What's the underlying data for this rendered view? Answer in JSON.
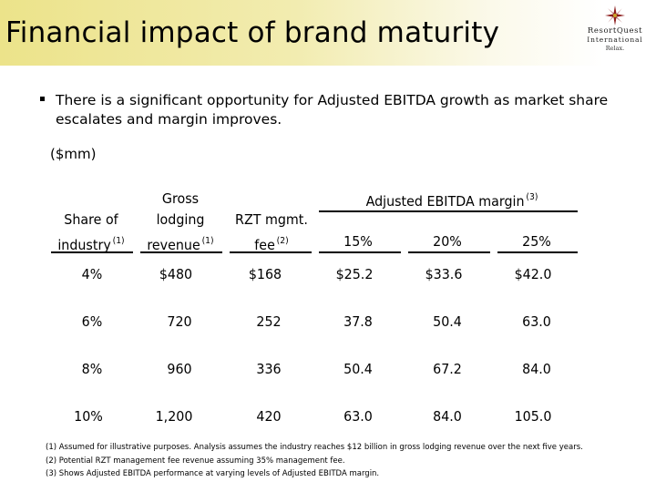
{
  "header": {
    "title": "Financial impact of brand maturity",
    "logo": {
      "icon": "compass-star-icon",
      "line1": "ResortQuest",
      "line2": "International",
      "line3": "Relax."
    }
  },
  "bullet": {
    "text": "There is a significant opportunity for Adjusted EBITDA growth as market share escalates and margin improves."
  },
  "unit_label": "($mm)",
  "table": {
    "group_header": "Adjusted EBITDA margin",
    "group_note": "(3)",
    "col_share": {
      "line1": "Share of",
      "line2": "industry",
      "note": "(1)"
    },
    "col_gross": {
      "line1": "Gross",
      "line2": "lodging",
      "line3": "revenue",
      "note": "(1)"
    },
    "col_fee": {
      "line1": "RZT mgmt.",
      "line2": "fee",
      "note": "(2)"
    },
    "margins": [
      "15%",
      "20%",
      "25%"
    ],
    "rows": [
      {
        "share": "4%",
        "gross": "$480",
        "fee": "$168",
        "m15": "$25.2",
        "m20": "$33.6",
        "m25": "$42.0"
      },
      {
        "share": "6%",
        "gross": "720",
        "fee": "252",
        "m15": "37.8",
        "m20": "50.4",
        "m25": "63.0"
      },
      {
        "share": "8%",
        "gross": "960",
        "fee": "336",
        "m15": "50.4",
        "m20": "67.2",
        "m25": "84.0"
      },
      {
        "share": "10%",
        "gross": "1,200",
        "fee": "420",
        "m15": "63.0",
        "m20": "84.0",
        "m25": "105.0"
      }
    ]
  },
  "footnotes": [
    "(1) Assumed for illustrative purposes.  Analysis assumes the industry reaches $12 billion in gross lodging revenue over the next five years.",
    "(2) Potential RZT management fee revenue assuming 35% management fee.",
    "(3) Shows Adjusted EBITDA performance at varying levels of Adjusted EBITDA margin."
  ]
}
